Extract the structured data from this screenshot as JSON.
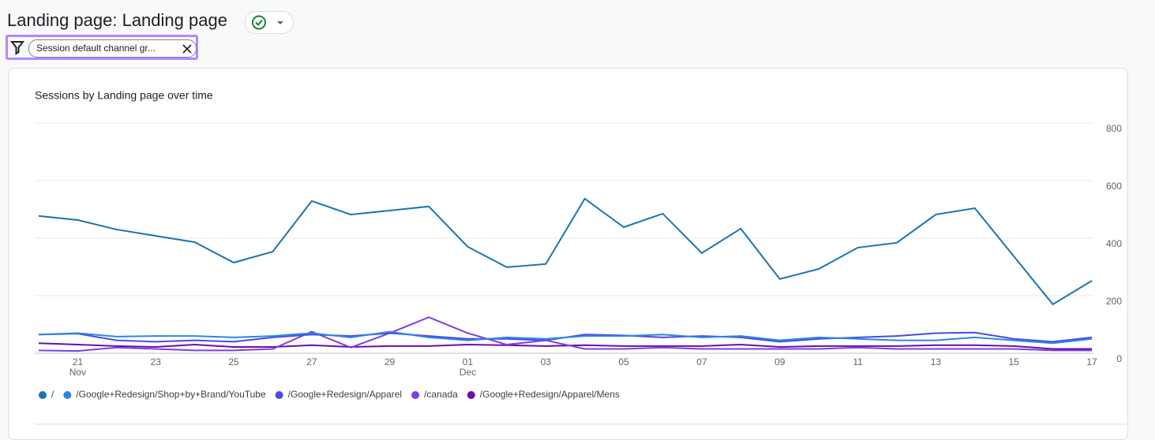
{
  "header": {
    "title": "Landing page: Landing page",
    "filter": "Session default channel gr..."
  },
  "chart_data": {
    "type": "line",
    "title": "Sessions by Landing page over time",
    "categories": [
      null,
      "21",
      null,
      "23",
      null,
      "25",
      null,
      "27",
      null,
      "29",
      null,
      "01",
      null,
      "03",
      null,
      "05",
      null,
      "07",
      null,
      "09",
      null,
      "11",
      null,
      "13",
      null,
      "15",
      null,
      "17"
    ],
    "category_months": [
      null,
      "Nov",
      null,
      null,
      null,
      null,
      null,
      null,
      null,
      null,
      null,
      "Dec",
      null,
      null,
      null,
      null,
      null,
      null,
      null,
      null,
      null,
      null,
      null,
      null,
      null,
      null,
      null,
      null
    ],
    "series": [
      {
        "name": "/",
        "color": "#1a73b0",
        "values": [
          477,
          463,
          430,
          408,
          386,
          315,
          353,
          529,
          482,
          496,
          510,
          370,
          299,
          310,
          537,
          438,
          485,
          348,
          433,
          258,
          293,
          367,
          384,
          482,
          504,
          337,
          170,
          252
        ]
      },
      {
        "name": "/Google+Redesign/Shop+by+Brand/YouTube",
        "color": "#2b87e3",
        "values": [
          65,
          70,
          58,
          60,
          60,
          55,
          60,
          70,
          55,
          75,
          55,
          45,
          55,
          50,
          60,
          60,
          65,
          55,
          60,
          45,
          55,
          50,
          45,
          45,
          55,
          45,
          35,
          50
        ]
      },
      {
        "name": "/Google+Redesign/Apparel",
        "color": "#4b4be3",
        "values": [
          65,
          68,
          45,
          40,
          45,
          40,
          55,
          65,
          60,
          70,
          60,
          50,
          50,
          45,
          65,
          62,
          55,
          60,
          55,
          40,
          50,
          55,
          60,
          70,
          72,
          50,
          40,
          55
        ]
      },
      {
        "name": "/canada",
        "color": "#7c3fe0",
        "values": [
          10,
          8,
          20,
          15,
          10,
          10,
          15,
          75,
          20,
          70,
          125,
          70,
          30,
          45,
          15,
          15,
          20,
          15,
          15,
          15,
          15,
          20,
          15,
          15,
          15,
          15,
          10,
          10
        ]
      },
      {
        "name": "/Google+Redesign/Apparel/Mens",
        "color": "#6a0dad",
        "values": [
          35,
          30,
          25,
          22,
          30,
          22,
          22,
          28,
          22,
          25,
          25,
          30,
          28,
          25,
          28,
          25,
          25,
          25,
          30,
          22,
          25,
          25,
          25,
          28,
          28,
          25,
          15,
          15
        ]
      }
    ],
    "ylim": [
      0,
      800
    ],
    "yticks": [
      0,
      200,
      400,
      600,
      800
    ],
    "grid": true
  }
}
